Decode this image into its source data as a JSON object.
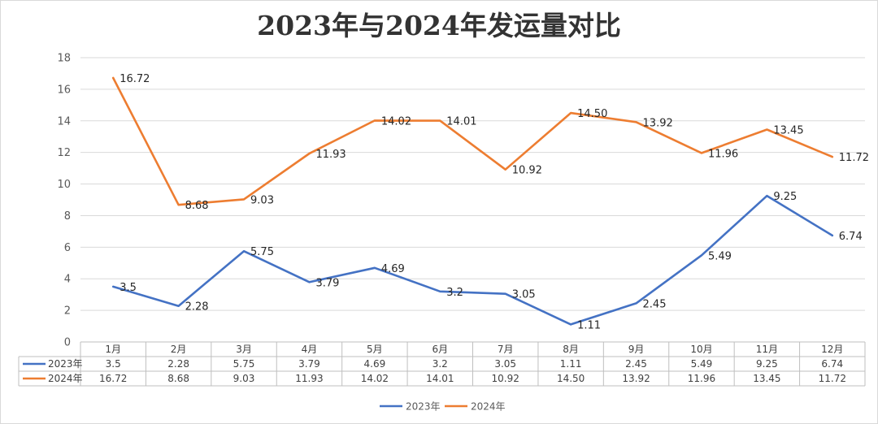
{
  "chart_data": {
    "type": "line",
    "title": "2023年与2024年发运量对比",
    "categories": [
      "1月",
      "2月",
      "3月",
      "4月",
      "5月",
      "6月",
      "7月",
      "8月",
      "9月",
      "10月",
      "11月",
      "12月"
    ],
    "series": [
      {
        "name": "2023年",
        "color": "#4472C4",
        "values": [
          3.5,
          2.28,
          5.75,
          3.79,
          4.69,
          3.2,
          3.05,
          1.11,
          2.45,
          5.49,
          9.25,
          6.74
        ],
        "labels": [
          "3.5",
          "2.28",
          "5.75",
          "3.79",
          "4.69",
          "3.2",
          "3.05",
          "1.11",
          "2.45",
          "5.49",
          "9.25",
          "6.74"
        ]
      },
      {
        "name": "2024年",
        "color": "#ED7D31",
        "values": [
          16.72,
          8.68,
          9.03,
          11.93,
          14.02,
          14.01,
          10.92,
          14.5,
          13.92,
          11.96,
          13.45,
          11.72
        ],
        "labels": [
          "16.72",
          "8.68",
          "9.03",
          "11.93",
          "14.02",
          "14.01",
          "10.92",
          "14.50",
          "13.92",
          "11.96",
          "13.45",
          "11.72"
        ]
      }
    ],
    "y_ticks": [
      "0",
      "2",
      "4",
      "6",
      "8",
      "10",
      "12",
      "14",
      "16",
      "18"
    ],
    "ylim": [
      0,
      18
    ],
    "grid": true,
    "legend": "bottom",
    "data_table": true,
    "xlabel": "",
    "ylabel": ""
  }
}
